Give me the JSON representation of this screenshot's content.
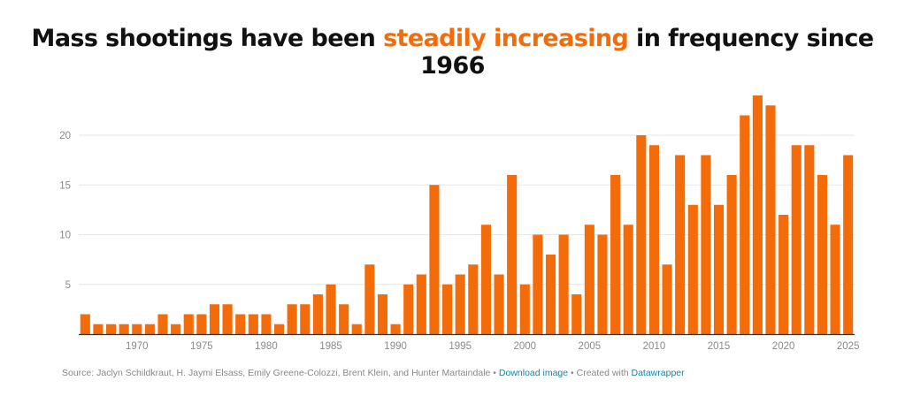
{
  "title": {
    "before": "Mass shootings have been ",
    "highlight": "steadily increasing",
    "after": " in frequency since 1966",
    "highlight_color": "#f46b0a"
  },
  "footer": {
    "source": "Source: Jaclyn Schildkraut, H. Jaymi Elsass, Emily Greene-Colozzi, Brent Klein, and Hunter Martaindale",
    "separator": " • ",
    "download_label": "Download image",
    "created_with_label": "Created with ",
    "datawrapper_label": "Datawrapper"
  },
  "chart_data": {
    "type": "bar",
    "title": "Mass shootings have been steadily increasing in frequency since 1966",
    "xlabel": "",
    "ylabel": "",
    "bar_color": "#f46b0a",
    "grid": true,
    "ylim": [
      0,
      25
    ],
    "yticks": [
      5,
      10,
      15,
      20
    ],
    "xticks": [
      1970,
      1975,
      1980,
      1985,
      1990,
      1995,
      2000,
      2005,
      2010,
      2015,
      2020,
      2025
    ],
    "categories": [
      1966,
      1967,
      1968,
      1969,
      1970,
      1971,
      1972,
      1973,
      1974,
      1975,
      1976,
      1977,
      1978,
      1979,
      1980,
      1981,
      1982,
      1983,
      1984,
      1985,
      1986,
      1987,
      1988,
      1989,
      1990,
      1991,
      1992,
      1993,
      1994,
      1995,
      1996,
      1997,
      1998,
      1999,
      2000,
      2001,
      2002,
      2003,
      2004,
      2005,
      2006,
      2007,
      2008,
      2009,
      2010,
      2011,
      2012,
      2013,
      2014,
      2015,
      2016,
      2017,
      2018,
      2019,
      2020,
      2021,
      2022,
      2023,
      2024,
      2025
    ],
    "values": [
      2,
      1,
      1,
      1,
      1,
      1,
      2,
      1,
      2,
      2,
      3,
      3,
      2,
      2,
      2,
      1,
      3,
      3,
      4,
      5,
      3,
      1,
      7,
      4,
      1,
      5,
      6,
      15,
      5,
      6,
      7,
      11,
      6,
      16,
      5,
      10,
      8,
      10,
      4,
      11,
      10,
      16,
      11,
      20,
      19,
      7,
      18,
      13,
      18,
      13,
      16,
      22,
      24,
      23,
      12,
      19,
      19,
      16,
      11,
      18
    ]
  }
}
